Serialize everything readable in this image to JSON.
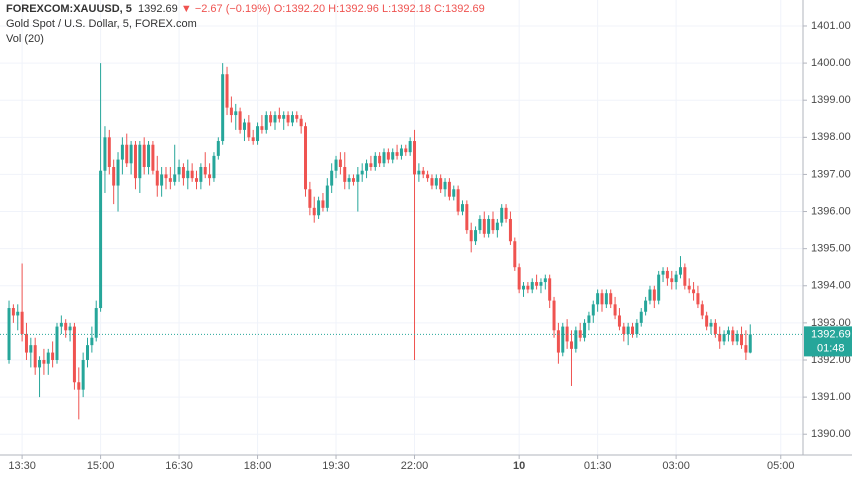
{
  "chart_data": {
    "type": "candlestick",
    "legend": {
      "symbol": "FOREXCOM:XAUUSD, 5",
      "price": "1392.69",
      "arrow": "▼",
      "change": "−2.67 (−0.19%)",
      "open": "O:1392.20",
      "high": "H:1392.96",
      "low": "L:1392.18",
      "close": "C:1392.69",
      "description": "Gold Spot / U.S. Dollar, 5, FOREX.com",
      "volume": "Vol (20)"
    },
    "up_color": "#26a69a",
    "down_color": "#ef5350",
    "grid": true,
    "xlim": [
      -2.07,
      182.1
    ],
    "xticks": [
      {
        "value": 3,
        "label": "13:30"
      },
      {
        "value": 21,
        "label": "15:00"
      },
      {
        "value": 39,
        "label": "16:30"
      },
      {
        "value": 57,
        "label": "18:00"
      },
      {
        "value": 75,
        "label": "19:30"
      },
      {
        "value": 93,
        "label": "22:00"
      },
      {
        "value": 117,
        "label": "10"
      },
      {
        "value": 135,
        "label": "01:30"
      },
      {
        "value": 153,
        "label": "03:00"
      },
      {
        "value": 177,
        "label": "05:00"
      }
    ],
    "ylim": [
      1389.44,
      1401.7
    ],
    "yticks": [
      {
        "value": 1390,
        "label": "1390.00"
      },
      {
        "value": 1391,
        "label": "1391.00"
      },
      {
        "value": 1392,
        "label": "1392.00"
      },
      {
        "value": 1393,
        "label": "1393.00"
      },
      {
        "value": 1394,
        "label": "1394.00"
      },
      {
        "value": 1395,
        "label": "1395.00"
      },
      {
        "value": 1396,
        "label": "1396.00"
      },
      {
        "value": 1397,
        "label": "1397.00"
      },
      {
        "value": 1398,
        "label": "1398.00"
      },
      {
        "value": 1399,
        "label": "1399.00"
      },
      {
        "value": 1400,
        "label": "1400.00"
      },
      {
        "value": 1401,
        "label": "1401.00"
      }
    ],
    "last_price": {
      "value": 1392.69,
      "label": "1392.69"
    },
    "countdown": "01:48",
    "candles": [
      [
        1392.0,
        1393.6,
        1391.9,
        1393.4
      ],
      [
        1393.4,
        1393.5,
        1393.0,
        1393.2
      ],
      [
        1393.2,
        1393.5,
        1392.8,
        1393.3
      ],
      [
        1393.3,
        1394.6,
        1392.5,
        1392.7
      ],
      [
        1392.7,
        1393.0,
        1392.0,
        1392.2
      ],
      [
        1392.2,
        1392.6,
        1391.8,
        1392.4
      ],
      [
        1392.4,
        1392.6,
        1391.6,
        1391.8
      ],
      [
        1391.8,
        1392.1,
        1391.0,
        1392.0
      ],
      [
        1392.0,
        1392.3,
        1391.6,
        1391.9
      ],
      [
        1391.9,
        1392.3,
        1391.6,
        1392.2
      ],
      [
        1392.2,
        1392.5,
        1391.8,
        1392.0
      ],
      [
        1392.0,
        1393.0,
        1391.9,
        1392.9
      ],
      [
        1392.9,
        1393.2,
        1392.7,
        1393.0
      ],
      [
        1393.0,
        1393.1,
        1392.6,
        1392.8
      ],
      [
        1392.8,
        1393.0,
        1392.5,
        1392.9
      ],
      [
        1392.9,
        1393.0,
        1391.2,
        1391.4
      ],
      [
        1391.4,
        1391.8,
        1390.4,
        1391.2
      ],
      [
        1391.2,
        1392.2,
        1391.0,
        1392.0
      ],
      [
        1392.0,
        1392.6,
        1391.8,
        1392.4
      ],
      [
        1392.4,
        1392.9,
        1392.2,
        1392.6
      ],
      [
        1392.6,
        1393.6,
        1392.5,
        1393.4
      ],
      [
        1393.4,
        1400.0,
        1393.3,
        1397.1
      ],
      [
        1397.1,
        1398.3,
        1396.5,
        1398.0
      ],
      [
        1398.0,
        1398.2,
        1397.0,
        1397.2
      ],
      [
        1397.2,
        1397.4,
        1396.2,
        1396.7
      ],
      [
        1396.7,
        1397.6,
        1396.0,
        1397.4
      ],
      [
        1397.4,
        1398.0,
        1397.0,
        1397.8
      ],
      [
        1397.8,
        1398.1,
        1397.2,
        1397.3
      ],
      [
        1397.3,
        1397.9,
        1397.0,
        1397.8
      ],
      [
        1397.8,
        1397.9,
        1396.6,
        1396.9
      ],
      [
        1396.9,
        1397.9,
        1396.5,
        1397.8
      ],
      [
        1397.8,
        1398.0,
        1397.0,
        1397.2
      ],
      [
        1397.2,
        1397.9,
        1397.0,
        1397.8
      ],
      [
        1397.8,
        1397.9,
        1397.0,
        1397.1
      ],
      [
        1397.1,
        1397.5,
        1396.4,
        1396.7
      ],
      [
        1396.7,
        1397.2,
        1396.4,
        1397.0
      ],
      [
        1397.0,
        1397.2,
        1396.6,
        1396.9
      ],
      [
        1396.9,
        1397.2,
        1396.6,
        1396.8
      ],
      [
        1396.8,
        1397.8,
        1396.7,
        1397.0
      ],
      [
        1397.0,
        1397.4,
        1396.8,
        1397.2
      ],
      [
        1397.2,
        1397.3,
        1396.7,
        1396.9
      ],
      [
        1396.9,
        1397.4,
        1396.6,
        1397.1
      ],
      [
        1397.1,
        1397.3,
        1396.8,
        1396.9
      ],
      [
        1396.9,
        1397.1,
        1396.6,
        1396.8
      ],
      [
        1396.8,
        1397.3,
        1396.6,
        1397.2
      ],
      [
        1397.2,
        1397.6,
        1396.9,
        1397.0
      ],
      [
        1397.0,
        1397.3,
        1396.7,
        1396.9
      ],
      [
        1396.9,
        1397.6,
        1396.8,
        1397.5
      ],
      [
        1397.5,
        1398.0,
        1397.4,
        1397.9
      ],
      [
        1397.9,
        1400.0,
        1397.8,
        1399.7
      ],
      [
        1399.7,
        1399.9,
        1398.6,
        1398.8
      ],
      [
        1398.8,
        1399.1,
        1398.4,
        1398.6
      ],
      [
        1398.6,
        1398.9,
        1398.2,
        1398.7
      ],
      [
        1398.7,
        1398.8,
        1398.1,
        1398.2
      ],
      [
        1398.2,
        1398.5,
        1397.9,
        1398.4
      ],
      [
        1398.4,
        1398.6,
        1397.9,
        1398.0
      ],
      [
        1398.0,
        1398.2,
        1397.8,
        1397.9
      ],
      [
        1397.9,
        1398.4,
        1397.8,
        1398.3
      ],
      [
        1398.3,
        1398.6,
        1398.1,
        1398.2
      ],
      [
        1398.2,
        1398.7,
        1398.1,
        1398.6
      ],
      [
        1398.6,
        1398.7,
        1398.3,
        1398.4
      ],
      [
        1398.4,
        1398.7,
        1398.2,
        1398.6
      ],
      [
        1398.6,
        1398.8,
        1398.4,
        1398.5
      ],
      [
        1398.5,
        1398.7,
        1398.2,
        1398.6
      ],
      [
        1398.6,
        1398.7,
        1398.3,
        1398.4
      ],
      [
        1398.4,
        1398.7,
        1398.3,
        1398.6
      ],
      [
        1398.6,
        1398.7,
        1398.4,
        1398.5
      ],
      [
        1398.5,
        1398.6,
        1398.1,
        1398.3
      ],
      [
        1398.3,
        1398.4,
        1396.4,
        1396.6
      ],
      [
        1396.6,
        1396.8,
        1395.9,
        1396.1
      ],
      [
        1396.1,
        1396.4,
        1395.7,
        1395.9
      ],
      [
        1395.9,
        1396.4,
        1395.8,
        1396.3
      ],
      [
        1396.3,
        1396.5,
        1396.0,
        1396.1
      ],
      [
        1396.1,
        1396.9,
        1396.0,
        1396.7
      ],
      [
        1396.7,
        1397.3,
        1396.5,
        1397.1
      ],
      [
        1397.1,
        1397.5,
        1396.9,
        1397.4
      ],
      [
        1397.4,
        1397.6,
        1397.0,
        1397.2
      ],
      [
        1397.2,
        1397.6,
        1396.6,
        1396.8
      ],
      [
        1396.8,
        1397.0,
        1396.6,
        1396.9
      ],
      [
        1396.9,
        1397.0,
        1396.7,
        1396.8
      ],
      [
        1396.8,
        1397.2,
        1396.0,
        1397.0
      ],
      [
        1397.0,
        1397.3,
        1396.8,
        1397.1
      ],
      [
        1397.1,
        1397.4,
        1396.9,
        1397.3
      ],
      [
        1397.3,
        1397.5,
        1397.1,
        1397.2
      ],
      [
        1397.2,
        1397.6,
        1397.1,
        1397.5
      ],
      [
        1397.5,
        1397.6,
        1397.2,
        1397.3
      ],
      [
        1397.3,
        1397.7,
        1397.2,
        1397.6
      ],
      [
        1397.6,
        1397.7,
        1397.3,
        1397.4
      ],
      [
        1397.4,
        1397.7,
        1397.3,
        1397.6
      ],
      [
        1397.6,
        1397.8,
        1397.4,
        1397.5
      ],
      [
        1397.5,
        1397.8,
        1397.4,
        1397.7
      ],
      [
        1397.7,
        1397.8,
        1397.5,
        1397.6
      ],
      [
        1397.6,
        1398.0,
        1397.5,
        1397.9
      ],
      [
        1397.9,
        1398.2,
        1392.0,
        1397.0
      ],
      [
        1397.0,
        1397.3,
        1396.8,
        1397.1
      ],
      [
        1397.1,
        1397.2,
        1396.9,
        1397.0
      ],
      [
        1397.0,
        1397.1,
        1396.8,
        1396.9
      ],
      [
        1396.9,
        1397.0,
        1396.6,
        1396.7
      ],
      [
        1396.7,
        1397.0,
        1396.6,
        1396.9
      ],
      [
        1396.9,
        1397.0,
        1396.5,
        1396.6
      ],
      [
        1396.6,
        1396.9,
        1396.4,
        1396.8
      ],
      [
        1396.8,
        1396.9,
        1396.3,
        1396.4
      ],
      [
        1396.4,
        1396.7,
        1396.3,
        1396.6
      ],
      [
        1396.6,
        1396.7,
        1395.9,
        1396.0
      ],
      [
        1396.0,
        1396.3,
        1395.9,
        1396.2
      ],
      [
        1396.2,
        1396.3,
        1395.4,
        1395.5
      ],
      [
        1395.5,
        1395.7,
        1394.9,
        1395.2
      ],
      [
        1395.2,
        1395.6,
        1395.1,
        1395.5
      ],
      [
        1395.5,
        1395.9,
        1395.4,
        1395.8
      ],
      [
        1395.8,
        1396.0,
        1395.3,
        1395.4
      ],
      [
        1395.4,
        1395.9,
        1395.3,
        1395.8
      ],
      [
        1395.8,
        1396.0,
        1395.4,
        1395.5
      ],
      [
        1395.5,
        1395.8,
        1395.3,
        1395.7
      ],
      [
        1395.7,
        1396.2,
        1395.6,
        1396.1
      ],
      [
        1396.1,
        1396.2,
        1395.7,
        1395.8
      ],
      [
        1395.8,
        1396.0,
        1395.1,
        1395.2
      ],
      [
        1395.2,
        1395.3,
        1394.4,
        1394.5
      ],
      [
        1394.5,
        1394.6,
        1393.8,
        1393.9
      ],
      [
        1393.9,
        1394.1,
        1393.7,
        1394.0
      ],
      [
        1394.0,
        1394.1,
        1393.8,
        1393.9
      ],
      [
        1393.9,
        1394.2,
        1393.8,
        1394.1
      ],
      [
        1394.1,
        1394.3,
        1393.9,
        1394.0
      ],
      [
        1394.0,
        1394.2,
        1393.8,
        1394.1
      ],
      [
        1394.1,
        1394.3,
        1393.9,
        1394.2
      ],
      [
        1394.2,
        1394.3,
        1393.4,
        1393.6
      ],
      [
        1393.6,
        1393.7,
        1392.6,
        1392.8
      ],
      [
        1392.8,
        1393.0,
        1391.9,
        1392.2
      ],
      [
        1392.2,
        1393.0,
        1392.1,
        1392.9
      ],
      [
        1392.9,
        1393.1,
        1392.3,
        1392.5
      ],
      [
        1392.5,
        1392.8,
        1391.3,
        1392.3
      ],
      [
        1392.3,
        1392.9,
        1392.2,
        1392.8
      ],
      [
        1392.8,
        1393.0,
        1392.5,
        1392.6
      ],
      [
        1392.6,
        1393.1,
        1392.5,
        1393.0
      ],
      [
        1393.0,
        1393.3,
        1392.8,
        1393.2
      ],
      [
        1393.2,
        1393.6,
        1393.0,
        1393.5
      ],
      [
        1393.5,
        1393.9,
        1393.3,
        1393.8
      ],
      [
        1393.8,
        1393.9,
        1393.3,
        1393.5
      ],
      [
        1393.5,
        1393.9,
        1393.4,
        1393.8
      ],
      [
        1393.8,
        1393.9,
        1393.4,
        1393.5
      ],
      [
        1393.5,
        1393.7,
        1393.1,
        1393.2
      ],
      [
        1393.2,
        1393.4,
        1392.8,
        1392.9
      ],
      [
        1392.9,
        1393.0,
        1392.5,
        1392.7
      ],
      [
        1392.7,
        1393.0,
        1392.4,
        1392.9
      ],
      [
        1392.9,
        1393.0,
        1392.6,
        1392.7
      ],
      [
        1392.7,
        1393.1,
        1392.6,
        1393.0
      ],
      [
        1393.0,
        1393.4,
        1392.9,
        1393.3
      ],
      [
        1393.3,
        1393.7,
        1393.2,
        1393.6
      ],
      [
        1393.6,
        1394.0,
        1393.5,
        1393.9
      ],
      [
        1393.9,
        1394.0,
        1393.4,
        1393.6
      ],
      [
        1393.6,
        1394.4,
        1393.5,
        1394.3
      ],
      [
        1394.3,
        1394.5,
        1394.1,
        1394.4
      ],
      [
        1394.4,
        1394.5,
        1394.0,
        1394.2
      ],
      [
        1394.2,
        1394.4,
        1393.9,
        1394.1
      ],
      [
        1394.1,
        1394.4,
        1393.9,
        1394.3
      ],
      [
        1394.3,
        1394.8,
        1394.2,
        1394.5
      ],
      [
        1394.5,
        1394.6,
        1393.9,
        1394.0
      ],
      [
        1394.0,
        1394.2,
        1393.8,
        1393.9
      ],
      [
        1393.9,
        1394.1,
        1393.6,
        1393.8
      ],
      [
        1393.8,
        1394.0,
        1393.4,
        1393.5
      ],
      [
        1393.5,
        1393.6,
        1393.1,
        1393.2
      ],
      [
        1393.2,
        1393.3,
        1392.8,
        1392.9
      ],
      [
        1392.9,
        1393.1,
        1392.7,
        1393.0
      ],
      [
        1393.0,
        1393.1,
        1392.6,
        1392.7
      ],
      [
        1392.7,
        1392.9,
        1392.3,
        1392.5
      ],
      [
        1392.5,
        1392.8,
        1392.4,
        1392.7
      ],
      [
        1392.7,
        1392.9,
        1392.5,
        1392.8
      ],
      [
        1392.8,
        1392.9,
        1392.4,
        1392.5
      ],
      [
        1392.5,
        1392.8,
        1392.4,
        1392.7
      ],
      [
        1392.7,
        1392.9,
        1392.3,
        1392.4
      ],
      [
        1392.4,
        1392.8,
        1392.0,
        1392.2
      ],
      [
        1392.2,
        1392.96,
        1392.18,
        1392.69
      ]
    ]
  }
}
